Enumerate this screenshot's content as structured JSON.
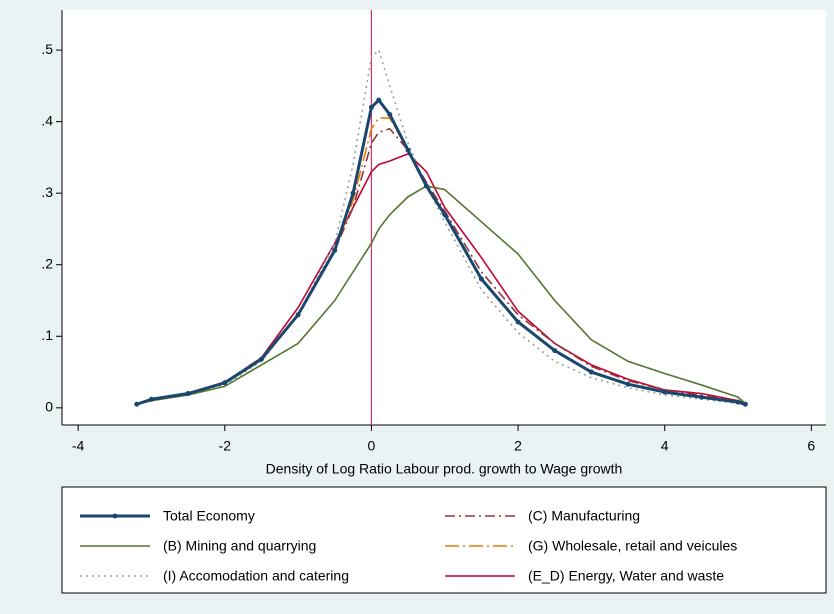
{
  "chart_data": {
    "type": "line",
    "x_label": "Density of Log Ratio Labour prod. growth to Wage growth",
    "x": [
      -3.2,
      -3,
      -2.5,
      -2,
      -1.5,
      -1,
      -0.5,
      -0.25,
      0,
      0.1,
      0.25,
      0.5,
      0.75,
      1,
      1.5,
      2,
      2.5,
      3,
      3.5,
      4,
      4.5,
      5,
      5.1
    ],
    "series": [
      {
        "name": "Total Economy",
        "color": "#1a476f",
        "dash": "solid",
        "markers": true,
        "values": [
          0.005,
          0.012,
          0.02,
          0.035,
          0.068,
          0.13,
          0.22,
          0.3,
          0.42,
          0.43,
          0.41,
          0.36,
          0.31,
          0.27,
          0.18,
          0.12,
          0.08,
          0.05,
          0.033,
          0.022,
          0.015,
          0.008,
          0.005
        ]
      },
      {
        "name": "(B) Mining and quarrying",
        "color": "#55752f",
        "dash": "solid",
        "values": [
          0.005,
          0.01,
          0.018,
          0.03,
          0.06,
          0.09,
          0.15,
          0.19,
          0.23,
          0.25,
          0.27,
          0.295,
          0.31,
          0.305,
          0.26,
          0.215,
          0.15,
          0.095,
          0.065,
          0.048,
          0.032,
          0.015,
          0.006
        ]
      },
      {
        "name": "(I) Accomodation and catering",
        "color": "#8fa3a3",
        "dash": "dot",
        "values": [
          0.005,
          0.01,
          0.018,
          0.032,
          0.065,
          0.13,
          0.23,
          0.34,
          0.49,
          0.5,
          0.45,
          0.37,
          0.31,
          0.26,
          0.165,
          0.105,
          0.065,
          0.042,
          0.028,
          0.018,
          0.012,
          0.006,
          0.004
        ]
      },
      {
        "name": "(C) Manufacturing",
        "color": "#90353b",
        "dash": "dashdot",
        "values": [
          0.005,
          0.01,
          0.02,
          0.036,
          0.07,
          0.13,
          0.22,
          0.28,
          0.37,
          0.385,
          0.39,
          0.36,
          0.315,
          0.275,
          0.19,
          0.13,
          0.09,
          0.058,
          0.038,
          0.025,
          0.017,
          0.01,
          0.006
        ]
      },
      {
        "name": "(G) Wholesale, retail and veicules",
        "color": "#e37e00",
        "dash": "longdashdot",
        "values": [
          0.005,
          0.011,
          0.02,
          0.035,
          0.068,
          0.13,
          0.22,
          0.29,
          0.39,
          0.405,
          0.405,
          0.36,
          0.31,
          0.27,
          0.18,
          0.12,
          0.08,
          0.05,
          0.033,
          0.022,
          0.015,
          0.008,
          0.005
        ]
      },
      {
        "name": "(E_D) Energy, Water and waste",
        "color": "#c10534",
        "dash": "solid",
        "values": [
          0.005,
          0.01,
          0.02,
          0.035,
          0.07,
          0.14,
          0.23,
          0.28,
          0.33,
          0.34,
          0.345,
          0.355,
          0.33,
          0.28,
          0.21,
          0.135,
          0.09,
          0.06,
          0.04,
          0.025,
          0.02,
          0.01,
          0.006
        ]
      }
    ],
    "xline": 0,
    "xline_color": "#d6336c",
    "xlim": [
      -4.22,
      6.2
    ],
    "xticks": [
      -4,
      -2,
      0,
      2,
      4,
      6
    ],
    "ylim": [
      -0.024,
      0.556
    ],
    "yticks": [
      0,
      {
        "value": 0.1,
        "label": ".1"
      },
      {
        "value": 0.2,
        "label": ".2"
      },
      {
        "value": 0.3,
        "label": ".3"
      },
      {
        "value": 0.4,
        "label": ".4"
      },
      {
        "value": 0.5,
        "label": ".5"
      }
    ],
    "grid": false,
    "legend": "bottom"
  }
}
